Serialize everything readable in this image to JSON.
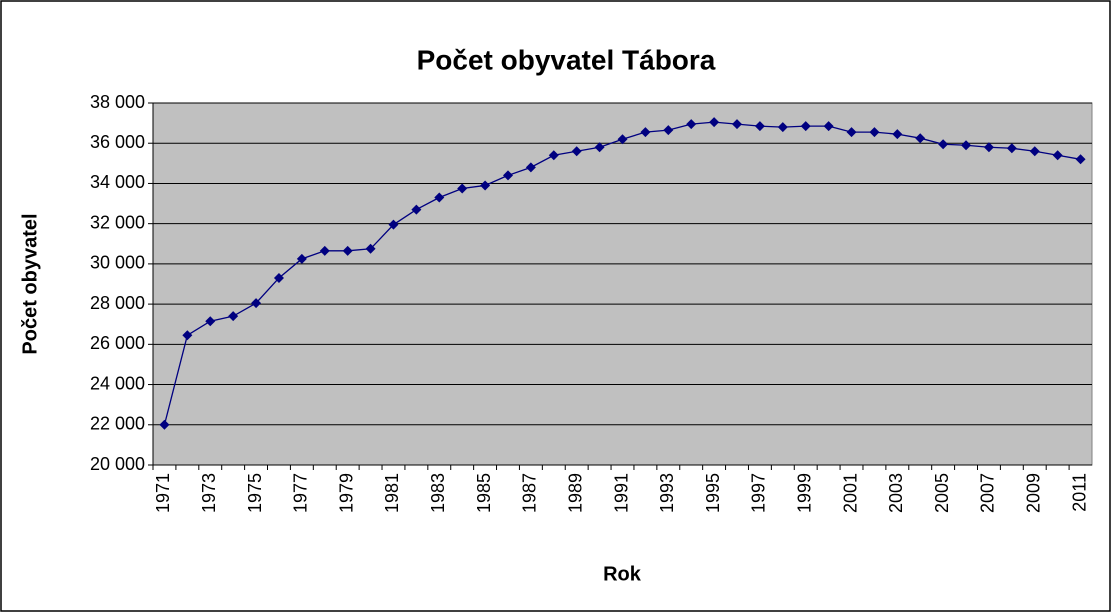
{
  "chart_data": {
    "type": "line",
    "title": "Počet obyvatel Tábora",
    "xlabel": "Rok",
    "ylabel": "Počet obyvatel",
    "categories": [
      "1971",
      null,
      "1973",
      null,
      "1975",
      null,
      "1977",
      null,
      "1979",
      null,
      "1981",
      null,
      "1983",
      null,
      "1985",
      null,
      "1987",
      null,
      "1989",
      null,
      "1991",
      null,
      "1993",
      null,
      "1995",
      null,
      "1997",
      null,
      "1999",
      null,
      "2001",
      null,
      "2003",
      null,
      "2005",
      null,
      "2007",
      null,
      "2009",
      null,
      "2011"
    ],
    "series": [
      {
        "name": "Počet obyvatel",
        "color": "#000080",
        "values": [
          22000,
          26450,
          27150,
          27400,
          28050,
          29300,
          30250,
          30650,
          30650,
          30750,
          31950,
          32700,
          33300,
          33750,
          33900,
          34400,
          34800,
          35400,
          35600,
          35800,
          36200,
          36550,
          36650,
          36950,
          37050,
          36950,
          36850,
          36800,
          36850,
          36850,
          36550,
          36550,
          36450,
          36250,
          35950,
          35900,
          35800,
          35750,
          35600,
          35400,
          35200
        ]
      }
    ],
    "ylim": [
      20000,
      38000
    ],
    "yticks": [
      {
        "value": 20000,
        "label": "20 000"
      },
      {
        "value": 22000,
        "label": "22 000"
      },
      {
        "value": 24000,
        "label": "24 000"
      },
      {
        "value": 26000,
        "label": "26 000"
      },
      {
        "value": 28000,
        "label": "28 000"
      },
      {
        "value": 30000,
        "label": "30 000"
      },
      {
        "value": 32000,
        "label": "32 000"
      },
      {
        "value": 34000,
        "label": "34 000"
      },
      {
        "value": 36000,
        "label": "36 000"
      },
      {
        "value": 38000,
        "label": "38 000"
      }
    ],
    "grid": true
  }
}
